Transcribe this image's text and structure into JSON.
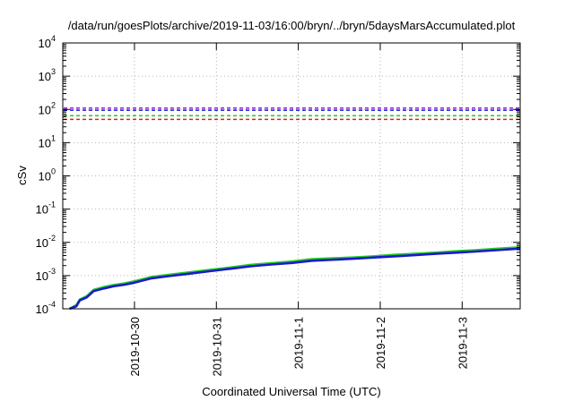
{
  "chart_data": {
    "type": "line",
    "title": "/data/run/goesPlots/archive/2019-11-03/16:00/bryn/../bryn/5daysMarsAccumulated.plot",
    "xlabel": "Coordinated Universal Time (UTC)",
    "ylabel": "cSv",
    "y_scale": "log",
    "ylim": [
      0.0001,
      10000
    ],
    "xlim": [
      "2019-10-29T03:00",
      "2019-11-03T17:00"
    ],
    "grid": true,
    "legend": "none",
    "x_ticks": [
      {
        "value": "2019-10-30T00:00",
        "label": "2019-10-30"
      },
      {
        "value": "2019-10-31T00:00",
        "label": "2019-10-31"
      },
      {
        "value": "2019-11-01T00:00",
        "label": "2019-11-1"
      },
      {
        "value": "2019-11-02T00:00",
        "label": "2019-11-2"
      },
      {
        "value": "2019-11-03T00:00",
        "label": "2019-11-3"
      }
    ],
    "y_ticks": [
      {
        "value": 0.0001,
        "base": "10",
        "exp": "-4"
      },
      {
        "value": 0.001,
        "base": "10",
        "exp": "-3"
      },
      {
        "value": 0.01,
        "base": "10",
        "exp": "-2"
      },
      {
        "value": 0.1,
        "base": "10",
        "exp": "-1"
      },
      {
        "value": 1,
        "base": "10",
        "exp": "0"
      },
      {
        "value": 10,
        "base": "10",
        "exp": "1"
      },
      {
        "value": 100,
        "base": "10",
        "exp": "2"
      },
      {
        "value": 1000,
        "base": "10",
        "exp": "3"
      },
      {
        "value": 10000,
        "base": "10",
        "exp": "4"
      }
    ],
    "reference_lines": [
      {
        "y": 110,
        "color": "#8c1cd6",
        "style": "dashed"
      },
      {
        "y": 95,
        "color": "#1a1acc",
        "style": "dashed"
      },
      {
        "y": 65,
        "color": "#22cc22",
        "style": "dashed"
      },
      {
        "y": 50,
        "color": "#e02020",
        "style": "dashed"
      }
    ],
    "series": [
      {
        "color": "#22cc22",
        "x": [
          "2019-10-29T05:00",
          "2019-10-29T07:00",
          "2019-10-29T08:00",
          "2019-10-29T10:00",
          "2019-10-29T12:00",
          "2019-10-29T15:00",
          "2019-10-29T18:00",
          "2019-10-29T21:00",
          "2019-10-30T00:00",
          "2019-10-30T05:00",
          "2019-10-30T10:00",
          "2019-10-30T16:00",
          "2019-10-30T22:00",
          "2019-10-31T04:00",
          "2019-10-31T10:00",
          "2019-10-31T16:00",
          "2019-10-31T22:00",
          "2019-11-01T04:00",
          "2019-11-01T10:00",
          "2019-11-01T16:00",
          "2019-11-01T22:00",
          "2019-11-02T04:00",
          "2019-11-02T10:00",
          "2019-11-02T16:00",
          "2019-11-02T22:00",
          "2019-11-03T04:00",
          "2019-11-03T10:00",
          "2019-11-03T17:00"
        ],
        "values": [
          0.0001,
          0.00013,
          0.00019,
          0.00024,
          0.00037,
          0.00045,
          0.00052,
          0.00058,
          0.00067,
          0.00091,
          0.00105,
          0.00125,
          0.00148,
          0.00175,
          0.0021,
          0.00235,
          0.00265,
          0.0031,
          0.0033,
          0.0035,
          0.0038,
          0.0042,
          0.0045,
          0.0049,
          0.0054,
          0.0058,
          0.0064,
          0.0071
        ]
      },
      {
        "color": "#1a1acc",
        "x": [
          "2019-10-29T05:00",
          "2019-10-29T07:00",
          "2019-10-29T08:00",
          "2019-10-29T10:00",
          "2019-10-29T12:00",
          "2019-10-29T15:00",
          "2019-10-29T18:00",
          "2019-10-29T21:00",
          "2019-10-30T00:00",
          "2019-10-30T05:00",
          "2019-10-30T10:00",
          "2019-10-30T16:00",
          "2019-10-30T22:00",
          "2019-10-31T04:00",
          "2019-10-31T10:00",
          "2019-10-31T16:00",
          "2019-10-31T22:00",
          "2019-11-01T04:00",
          "2019-11-01T10:00",
          "2019-11-01T16:00",
          "2019-11-01T22:00",
          "2019-11-02T04:00",
          "2019-11-02T10:00",
          "2019-11-02T16:00",
          "2019-11-02T22:00",
          "2019-11-03T04:00",
          "2019-11-03T10:00",
          "2019-11-03T17:00"
        ],
        "values": [
          0.0001,
          0.00012,
          0.00018,
          0.00022,
          0.00034,
          0.00041,
          0.00048,
          0.00053,
          0.00061,
          0.00083,
          0.00096,
          0.00114,
          0.00135,
          0.0016,
          0.0019,
          0.00215,
          0.0024,
          0.0028,
          0.003,
          0.0032,
          0.0035,
          0.0038,
          0.0041,
          0.0045,
          0.0049,
          0.0053,
          0.0058,
          0.0065
        ]
      }
    ]
  }
}
